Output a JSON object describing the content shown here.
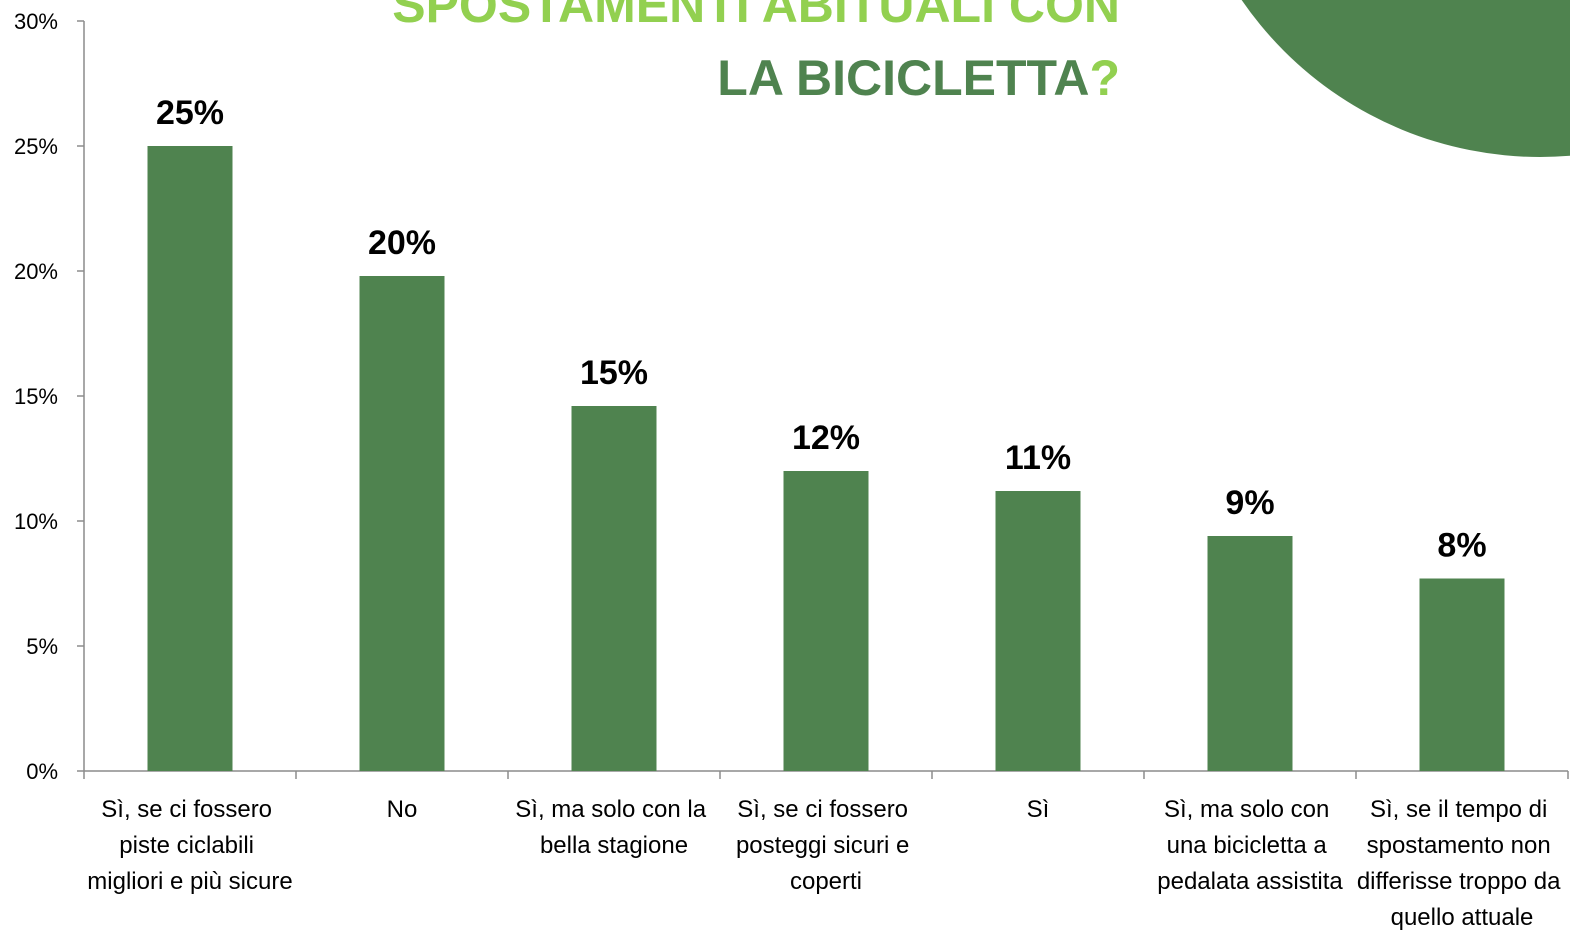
{
  "chart_data": {
    "type": "bar",
    "title": [
      "SPOSTAMENTI ABITUALI CON",
      "LA BICICLETTA?"
    ],
    "categories": [
      "Sì, se ci fossero piste ciclabili migliori e più sicure",
      "No",
      "Sì, ma solo con la bella stagione",
      "Sì, se ci fossero posteggi sicuri e coperti",
      "Sì",
      "Sì, ma solo con una bicicletta a pedalata assistita",
      "Sì, se il tempo di spostamento non differisse troppo da quello attuale"
    ],
    "values": [
      25,
      19.8,
      14.6,
      12.0,
      11.2,
      9.4,
      7.7
    ],
    "value_labels": [
      "25%",
      "20%",
      "15%",
      "12%",
      "11%",
      "9%",
      "8%"
    ],
    "color": "#4f834f",
    "ylim": [
      0,
      30
    ],
    "yticks": [
      {
        "value": 0,
        "label": "0%"
      },
      {
        "value": 5,
        "label": "5%"
      },
      {
        "value": 10,
        "label": "10%"
      },
      {
        "value": 15,
        "label": "15%"
      },
      {
        "value": 20,
        "label": "20%"
      },
      {
        "value": 25,
        "label": "25%"
      },
      {
        "value": 30,
        "label": "30%"
      }
    ],
    "grid": false
  }
}
